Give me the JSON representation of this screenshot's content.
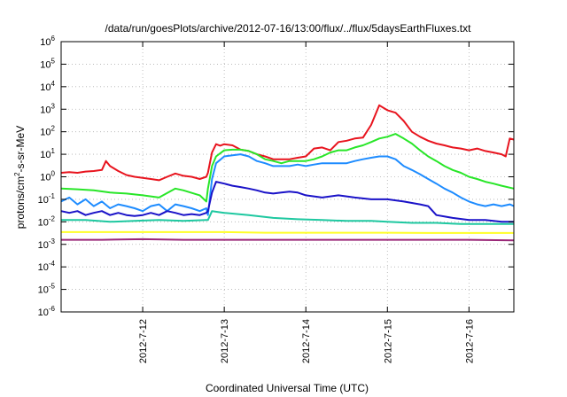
{
  "chart_data": {
    "type": "line",
    "title": "/data/run/goesPlots/archive/2012-07-16/13:00/flux/../flux/5daysEarthFluxes.txt",
    "xlabel": "Coordinated Universal Time (UTC)",
    "ylabel": {
      "prefix": "protons/cm",
      "superscript": "2",
      "suffix": "-s-sr-MeV"
    },
    "yscale": "log",
    "ylim": [
      1e-06,
      1000000.0
    ],
    "xlim": [
      0.0,
      5.55
    ],
    "grid": true,
    "xticks": [
      {
        "value": 1.0,
        "label": "2012-7-12"
      },
      {
        "value": 2.0,
        "label": "2012-7-13"
      },
      {
        "value": 3.0,
        "label": "2012-7-14"
      },
      {
        "value": 4.0,
        "label": "2012-7-15"
      },
      {
        "value": 5.0,
        "label": "2012-7-16"
      }
    ],
    "yticks": [
      {
        "value": 1e-06,
        "base": "10",
        "exp": "-6"
      },
      {
        "value": 1e-05,
        "base": "10",
        "exp": "-5"
      },
      {
        "value": 0.0001,
        "base": "10",
        "exp": "-4"
      },
      {
        "value": 0.001,
        "base": "10",
        "exp": "-3"
      },
      {
        "value": 0.01,
        "base": "10",
        "exp": "-2"
      },
      {
        "value": 0.1,
        "base": "10",
        "exp": "-1"
      },
      {
        "value": 1.0,
        "base": "10",
        "exp": "0"
      },
      {
        "value": 10.0,
        "base": "10",
        "exp": "1"
      },
      {
        "value": 100.0,
        "base": "10",
        "exp": "2"
      },
      {
        "value": 1000.0,
        "base": "10",
        "exp": "3"
      },
      {
        "value": 10000.0,
        "base": "10",
        "exp": "4"
      },
      {
        "value": 100000.0,
        "base": "10",
        "exp": "5"
      },
      {
        "value": 1000000.0,
        "base": "10",
        "exp": "6"
      }
    ],
    "series": [
      {
        "color": "#e8141e",
        "x": [
          0.0,
          0.1,
          0.2,
          0.3,
          0.4,
          0.5,
          0.55,
          0.6,
          0.7,
          0.8,
          0.9,
          1.0,
          1.1,
          1.2,
          1.3,
          1.4,
          1.5,
          1.6,
          1.7,
          1.78,
          1.8,
          1.85,
          1.9,
          1.95,
          2.0,
          2.1,
          2.2,
          2.3,
          2.4,
          2.5,
          2.6,
          2.7,
          2.8,
          2.9,
          3.0,
          3.1,
          3.2,
          3.3,
          3.4,
          3.5,
          3.6,
          3.7,
          3.8,
          3.9,
          4.0,
          4.1,
          4.2,
          4.3,
          4.4,
          4.5,
          4.6,
          4.7,
          4.8,
          4.9,
          5.0,
          5.1,
          5.2,
          5.3,
          5.4,
          5.45,
          5.5,
          5.55
        ],
        "y": [
          1.5,
          1.6,
          1.5,
          1.7,
          1.8,
          2.0,
          5.0,
          3.0,
          1.8,
          1.2,
          1.0,
          0.9,
          0.8,
          0.7,
          1.0,
          1.4,
          1.1,
          1.0,
          0.8,
          1.0,
          1.5,
          12,
          28,
          24,
          28,
          25,
          16,
          14,
          10,
          8,
          6,
          6,
          6,
          7,
          8,
          18,
          20,
          15,
          35,
          40,
          50,
          55,
          200,
          1500,
          900,
          700,
          300,
          100,
          60,
          40,
          30,
          25,
          20,
          18,
          15,
          18,
          14,
          12,
          10,
          8,
          50,
          45
        ]
      },
      {
        "color": "#28e628",
        "x": [
          0.0,
          0.2,
          0.4,
          0.6,
          0.8,
          1.0,
          1.2,
          1.4,
          1.5,
          1.7,
          1.78,
          1.8,
          1.85,
          1.9,
          2.0,
          2.1,
          2.2,
          2.3,
          2.4,
          2.5,
          2.6,
          2.7,
          2.8,
          2.9,
          3.0,
          3.1,
          3.2,
          3.3,
          3.4,
          3.5,
          3.6,
          3.7,
          3.8,
          3.9,
          4.0,
          4.1,
          4.2,
          4.3,
          4.4,
          4.5,
          4.6,
          4.7,
          4.8,
          4.9,
          5.0,
          5.1,
          5.2,
          5.3,
          5.4,
          5.55
        ],
        "y": [
          0.3,
          0.28,
          0.25,
          0.2,
          0.18,
          0.15,
          0.12,
          0.3,
          0.25,
          0.15,
          0.08,
          0.3,
          3,
          8,
          15,
          16,
          16,
          14,
          10,
          6,
          5,
          4,
          5,
          5,
          5,
          6,
          8,
          12,
          15,
          15,
          20,
          25,
          35,
          50,
          60,
          80,
          50,
          30,
          15,
          8,
          5,
          3,
          2,
          1.5,
          1.0,
          0.8,
          0.6,
          0.5,
          0.4,
          0.3
        ]
      },
      {
        "color": "#1e8cff",
        "x": [
          0.0,
          0.1,
          0.2,
          0.3,
          0.4,
          0.5,
          0.6,
          0.7,
          0.8,
          0.9,
          1.0,
          1.1,
          1.2,
          1.3,
          1.4,
          1.5,
          1.6,
          1.7,
          1.78,
          1.8,
          1.85,
          1.9,
          2.0,
          2.1,
          2.2,
          2.3,
          2.4,
          2.5,
          2.6,
          2.7,
          2.8,
          2.9,
          3.0,
          3.1,
          3.2,
          3.3,
          3.4,
          3.5,
          3.6,
          3.7,
          3.8,
          3.9,
          4.0,
          4.1,
          4.2,
          4.3,
          4.4,
          4.5,
          4.6,
          4.7,
          4.8,
          4.9,
          5.0,
          5.1,
          5.2,
          5.3,
          5.4,
          5.5,
          5.55
        ],
        "y": [
          0.08,
          0.12,
          0.06,
          0.1,
          0.05,
          0.08,
          0.04,
          0.06,
          0.05,
          0.04,
          0.03,
          0.05,
          0.06,
          0.03,
          0.06,
          0.05,
          0.04,
          0.03,
          0.04,
          0.02,
          0.8,
          4,
          8,
          9,
          10,
          8,
          5,
          4,
          3,
          3,
          3,
          3.5,
          3,
          3.5,
          4,
          4,
          4,
          4,
          5,
          6,
          7,
          8,
          8,
          6,
          3,
          2,
          1.3,
          0.8,
          0.5,
          0.3,
          0.2,
          0.12,
          0.08,
          0.06,
          0.05,
          0.06,
          0.05,
          0.06,
          0.05
        ]
      },
      {
        "color": "#1a12c8",
        "x": [
          0.0,
          0.1,
          0.2,
          0.3,
          0.4,
          0.5,
          0.6,
          0.7,
          0.8,
          0.9,
          1.0,
          1.1,
          1.2,
          1.3,
          1.4,
          1.5,
          1.6,
          1.7,
          1.78,
          1.8,
          1.85,
          1.9,
          2.0,
          2.1,
          2.2,
          2.3,
          2.4,
          2.5,
          2.6,
          2.7,
          2.8,
          2.9,
          3.0,
          3.2,
          3.4,
          3.6,
          3.8,
          4.0,
          4.2,
          4.4,
          4.5,
          4.6,
          4.8,
          5.0,
          5.2,
          5.4,
          5.55
        ],
        "y": [
          0.03,
          0.025,
          0.03,
          0.02,
          0.025,
          0.03,
          0.02,
          0.025,
          0.02,
          0.018,
          0.02,
          0.025,
          0.02,
          0.03,
          0.025,
          0.02,
          0.022,
          0.02,
          0.025,
          0.03,
          0.2,
          0.6,
          0.5,
          0.4,
          0.35,
          0.3,
          0.25,
          0.2,
          0.18,
          0.2,
          0.22,
          0.2,
          0.15,
          0.12,
          0.15,
          0.12,
          0.1,
          0.1,
          0.08,
          0.06,
          0.05,
          0.02,
          0.015,
          0.012,
          0.012,
          0.01,
          0.01
        ]
      },
      {
        "color": "#1ec8a0",
        "x": [
          0.0,
          0.3,
          0.6,
          0.9,
          1.2,
          1.5,
          1.78,
          1.8,
          1.85,
          2.0,
          2.3,
          2.6,
          2.9,
          3.2,
          3.5,
          3.8,
          4.0,
          4.3,
          4.6,
          4.9,
          5.2,
          5.55
        ],
        "y": [
          0.012,
          0.012,
          0.01,
          0.011,
          0.012,
          0.011,
          0.012,
          0.012,
          0.03,
          0.025,
          0.02,
          0.015,
          0.013,
          0.012,
          0.011,
          0.011,
          0.01,
          0.009,
          0.009,
          0.008,
          0.008,
          0.008
        ]
      },
      {
        "color": "#ffff28",
        "x": [
          0.0,
          0.5,
          1.0,
          1.5,
          2.0,
          2.5,
          3.0,
          3.5,
          4.0,
          4.5,
          5.0,
          5.55
        ],
        "y": [
          0.0035,
          0.0035,
          0.0035,
          0.0035,
          0.0035,
          0.0033,
          0.0033,
          0.0033,
          0.0033,
          0.0032,
          0.0032,
          0.0032
        ]
      },
      {
        "color": "#9a2878",
        "x": [
          0.0,
          0.5,
          1.0,
          1.5,
          2.0,
          2.5,
          3.0,
          3.5,
          4.0,
          4.5,
          5.0,
          5.55
        ],
        "y": [
          0.0016,
          0.0016,
          0.0017,
          0.0016,
          0.0016,
          0.0016,
          0.0016,
          0.0016,
          0.0016,
          0.0016,
          0.0016,
          0.0015
        ]
      }
    ]
  }
}
